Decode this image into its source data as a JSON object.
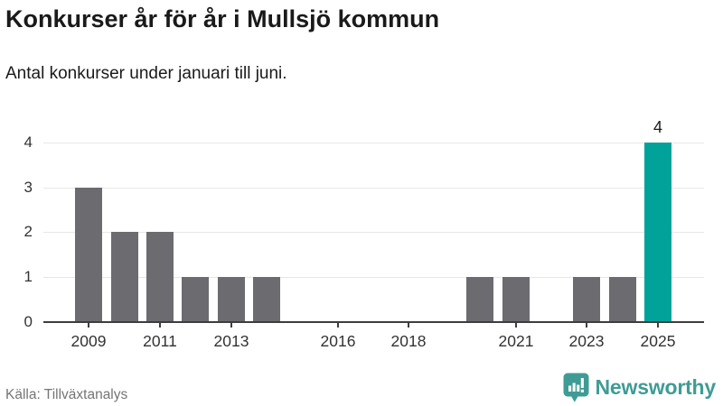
{
  "header": {
    "title": "Konkurser år för år i Mullsjö kommun",
    "subtitle": "Antal konkurser under januari till juni."
  },
  "chart_data": {
    "type": "bar",
    "title": "Konkurser år för år i Mullsjö kommun",
    "subtitle": "Antal konkurser under januari till juni.",
    "categories": [
      2009,
      2010,
      2011,
      2012,
      2013,
      2014,
      2015,
      2016,
      2017,
      2018,
      2019,
      2020,
      2021,
      2022,
      2023,
      2024,
      2025
    ],
    "values": [
      3,
      2,
      2,
      1,
      1,
      1,
      0,
      0,
      0,
      0,
      0,
      1,
      1,
      0,
      1,
      1,
      4
    ],
    "xticks": [
      2009,
      2011,
      2013,
      2016,
      2018,
      2021,
      2023,
      2025
    ],
    "yticks": [
      0,
      1,
      2,
      3,
      4
    ],
    "ylim": [
      0,
      4
    ],
    "xlabel": "",
    "ylabel": "",
    "grid": "horizontal",
    "legend": "none",
    "highlight_category": 2025,
    "data_labels": [
      {
        "category": 2025,
        "label": "4"
      }
    ],
    "bar_color": "#6b6b70",
    "highlight_color": "#00a29a"
  },
  "footer": {
    "source": "Källa: Tillväxtanalys",
    "brand": "Newsworthy",
    "brand_color": "#3f9c95"
  }
}
